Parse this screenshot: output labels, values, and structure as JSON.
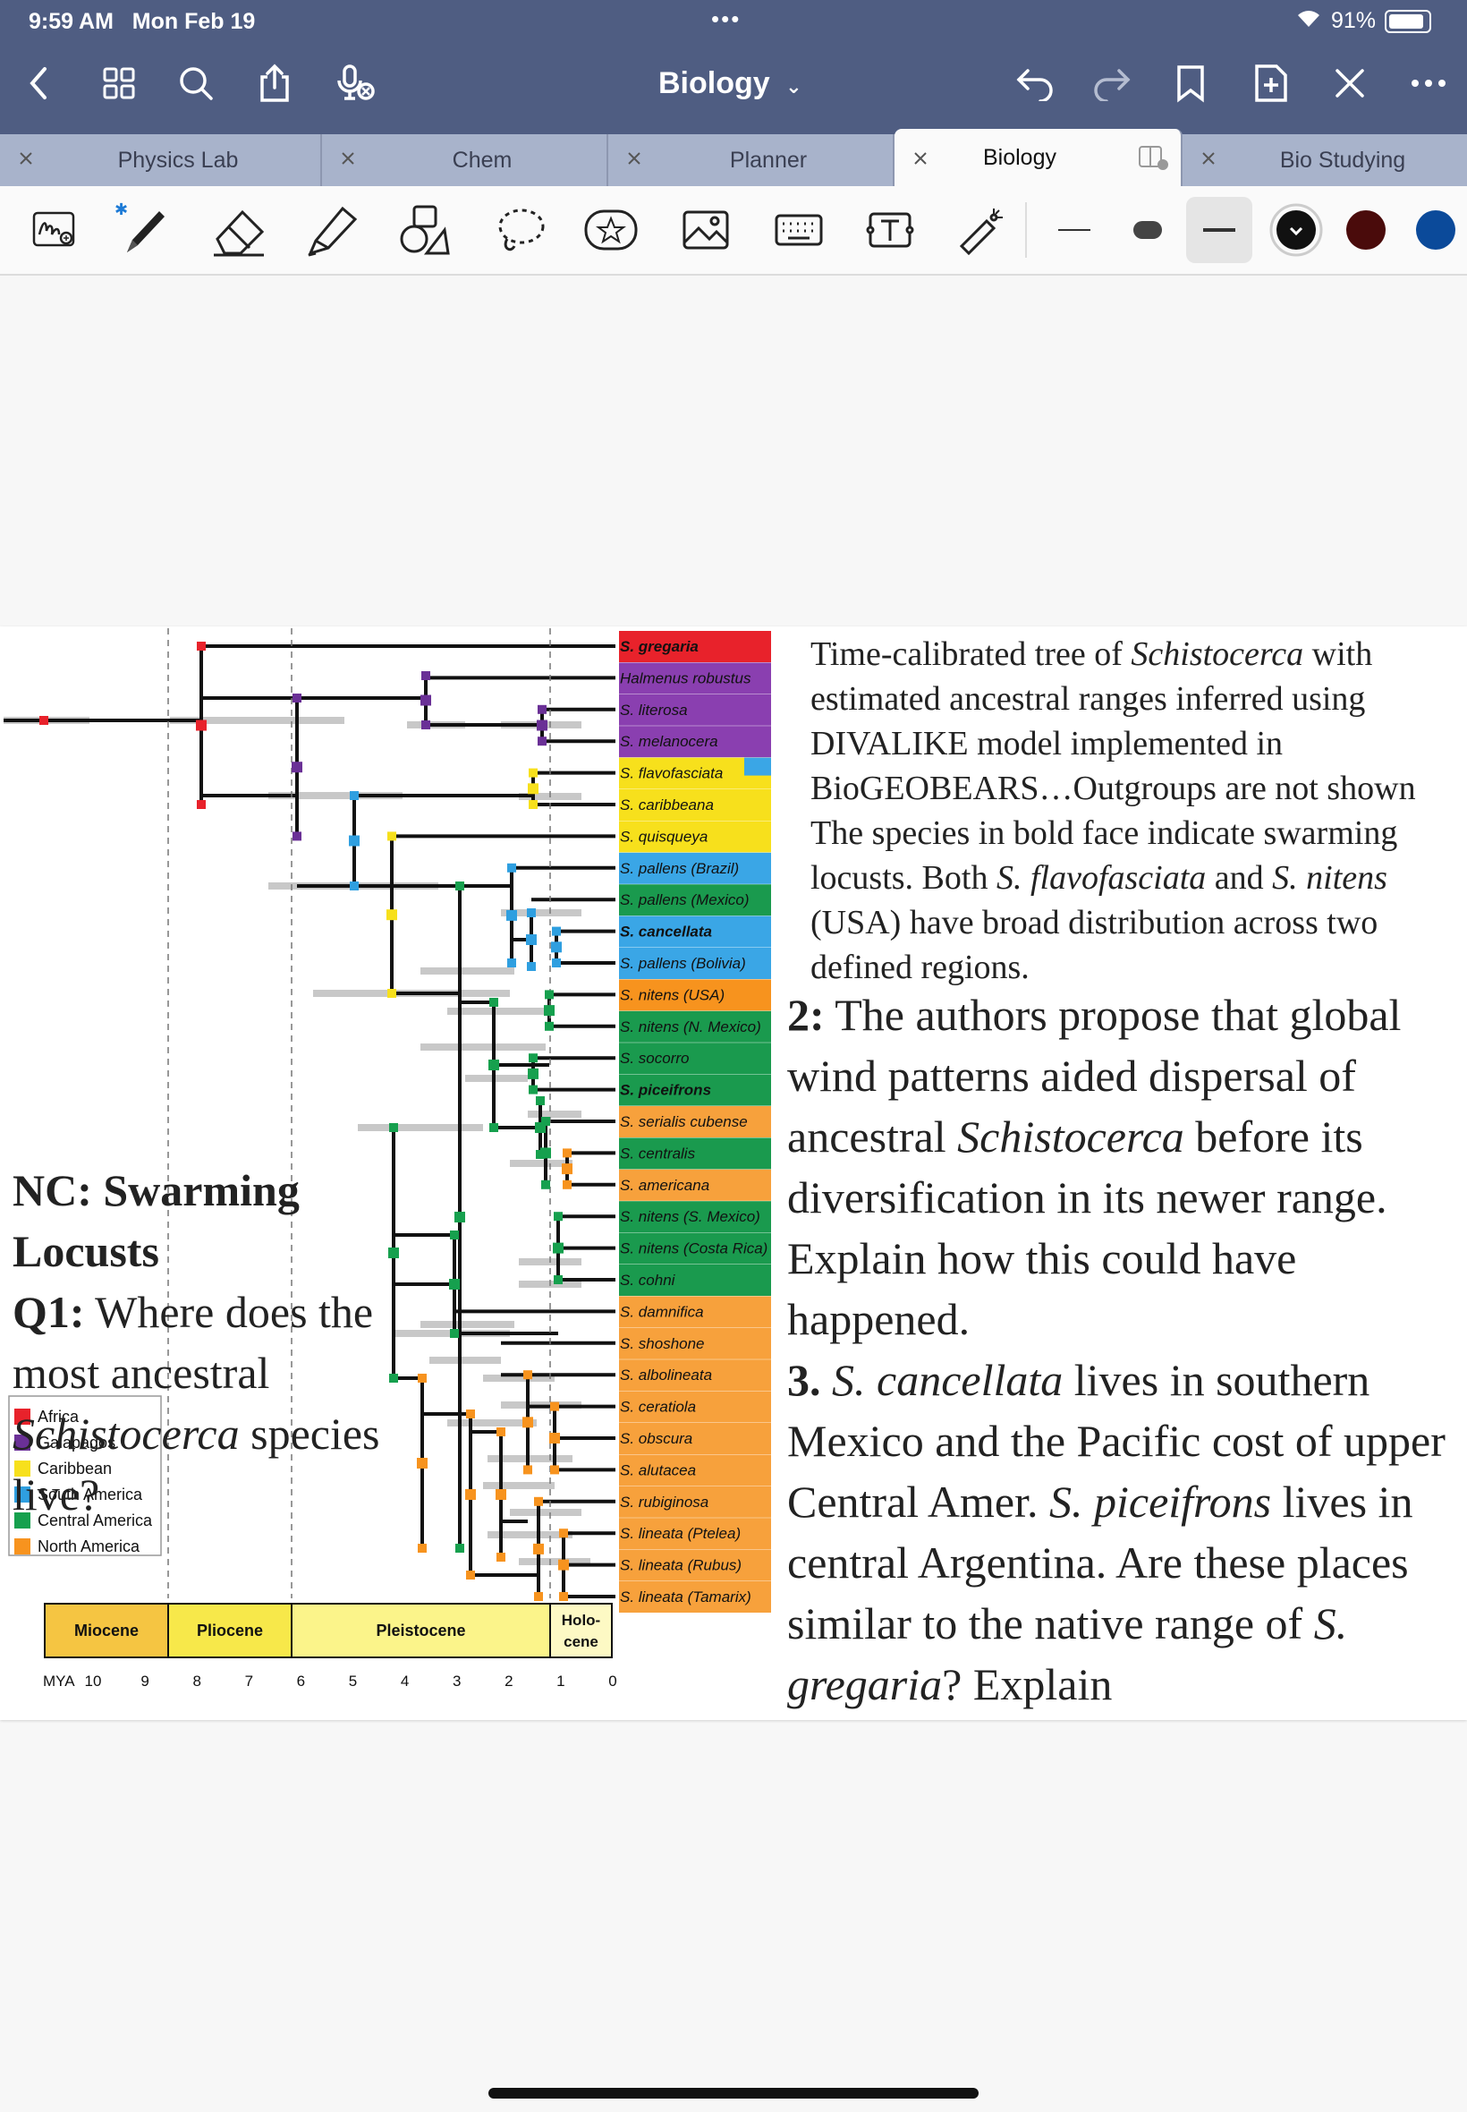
{
  "status": {
    "time": "9:59 AM",
    "date": "Mon Feb 19",
    "battery": "91%"
  },
  "titlebar": {
    "title": "Biology"
  },
  "tabs": [
    {
      "label": "Physics Lab"
    },
    {
      "label": "Chem"
    },
    {
      "label": "Planner"
    },
    {
      "label": "Biology"
    },
    {
      "label": "Bio Studying"
    }
  ],
  "toolbar": {
    "tools": [
      "handwriting-to-text-icon",
      "pen-icon",
      "eraser-icon",
      "highlighter-icon",
      "shapes-icon",
      "lasso-icon",
      "sticker-icon",
      "image-icon",
      "keyboard-icon",
      "text-box-icon",
      "laser-pointer-icon"
    ],
    "colors": [
      "#111111",
      "#4a0b0b",
      "#0b4a9a"
    ]
  },
  "figure": {
    "legend": [
      {
        "label": "Africa",
        "color": "#e8222b"
      },
      {
        "label": "Galapagos",
        "color": "#6a3096"
      },
      {
        "label": "Caribbean",
        "color": "#f7e01c"
      },
      {
        "label": "South America",
        "color": "#2f9fe0"
      },
      {
        "label": "Central America",
        "color": "#16a04e"
      },
      {
        "label": "North America",
        "color": "#f7931e"
      }
    ],
    "species": [
      {
        "name": "S. gregaria",
        "bold": true,
        "color": "#e8222b"
      },
      {
        "name": "Halmenus robustus",
        "bold": false,
        "color": "#8a3fb0"
      },
      {
        "name": "S. literosa",
        "bold": false,
        "color": "#8a3fb0"
      },
      {
        "name": "S. melanocera",
        "bold": false,
        "color": "#8a3fb0"
      },
      {
        "name": "S. flavofasciata",
        "bold": false,
        "color": "#f7e01c"
      },
      {
        "name": "S. caribbeana",
        "bold": false,
        "color": "#f7e01c"
      },
      {
        "name": "S. quisqueya",
        "bold": false,
        "color": "#f7e01c"
      },
      {
        "name": "S. pallens (Brazil)",
        "bold": false,
        "color": "#3aa6e6"
      },
      {
        "name": "S. pallens (Mexico)",
        "bold": false,
        "color": "#1a9a4e"
      },
      {
        "name": "S. cancellata",
        "bold": true,
        "color": "#3aa6e6"
      },
      {
        "name": "S. pallens (Bolivia)",
        "bold": false,
        "color": "#3aa6e6"
      },
      {
        "name": "S. nitens (USA)",
        "bold": false,
        "color": "#f7931e"
      },
      {
        "name": "S. nitens (N. Mexico)",
        "bold": false,
        "color": "#1a9a4e"
      },
      {
        "name": "S. socorro",
        "bold": false,
        "color": "#1a9a4e"
      },
      {
        "name": "S. piceifrons",
        "bold": true,
        "color": "#1a9a4e"
      },
      {
        "name": "S. serialis cubense",
        "bold": false,
        "color": "#f7a13c"
      },
      {
        "name": "S. centralis",
        "bold": false,
        "color": "#1a9a4e"
      },
      {
        "name": "S. americana",
        "bold": false,
        "color": "#f7a13c"
      },
      {
        "name": "S. nitens (S. Mexico)",
        "bold": false,
        "color": "#1a9a4e"
      },
      {
        "name": "S. nitens (Costa Rica)",
        "bold": false,
        "color": "#1a9a4e"
      },
      {
        "name": "S. cohni",
        "bold": false,
        "color": "#1a9a4e"
      },
      {
        "name": "S. damnifica",
        "bold": false,
        "color": "#f7a13c"
      },
      {
        "name": "S. shoshone",
        "bold": false,
        "color": "#f7a13c"
      },
      {
        "name": "S. albolineata",
        "bold": false,
        "color": "#f7a13c"
      },
      {
        "name": "S. ceratiola",
        "bold": false,
        "color": "#f7a13c"
      },
      {
        "name": "S. obscura",
        "bold": false,
        "color": "#f7a13c"
      },
      {
        "name": "S. alutacea",
        "bold": false,
        "color": "#f7a13c"
      },
      {
        "name": "S. rubiginosa",
        "bold": false,
        "color": "#f7a13c"
      },
      {
        "name": "S. lineata (Ptelea)",
        "bold": false,
        "color": "#f7a13c"
      },
      {
        "name": "S. lineata (Rubus)",
        "bold": false,
        "color": "#f7a13c"
      },
      {
        "name": "S. lineata (Tamarix)",
        "bold": false,
        "color": "#f7a13c"
      }
    ],
    "epochs": [
      {
        "label": "Miocene",
        "color": "#f5c542"
      },
      {
        "label": "Pliocene",
        "color": "#f7e84a"
      },
      {
        "label": "Pleistocene",
        "color": "#fbf48a"
      },
      {
        "label": "Holo-",
        "label2": "cene",
        "color": "#fdf9c4"
      }
    ],
    "axis": {
      "unit": "MYA",
      "ticks": [
        "10",
        "9",
        "8",
        "7",
        "6",
        "5",
        "4",
        "3",
        "2",
        "1",
        "0"
      ]
    }
  },
  "caption": {
    "parts": [
      {
        "t": "Time-calibrated tree of ",
        "i": false
      },
      {
        "t": "Schistocerca",
        "i": true
      },
      {
        "t": " with estimated ancestral ranges inferred using DIVALIKE model implemented in BioGEOBEARS…Outgroups are not shown The species in bold face indicate swarming locusts. Both ",
        "i": false
      },
      {
        "t": "S. flavofasciata",
        "i": true
      },
      {
        "t": " and ",
        "i": false
      },
      {
        "t": "S. nitens",
        "i": true
      },
      {
        "t": " (USA) have broad distribution across two defined regions.",
        "i": false
      }
    ]
  },
  "notes": {
    "nc_title": "NC: Swarming Locusts",
    "q1_label": "Q1:",
    "q1_text_a": " Where does the most ancestral ",
    "q1_italic": "Schistocerca",
    "q1_text_b": " species live?",
    "q2_label": "2:",
    "q2_text_a": " The authors propose that global wind patterns aided dispersal of ancestral ",
    "q2_italic": "Schistocerca",
    "q2_text_b": " before its diversification in its newer range.  Explain how this could have happened.",
    "q3_label": "3.",
    "q3_italic_a": " S. cancellata",
    "q3_text_a": " lives in southern Mexico and the Pacific cost of upper Central Amer.  ",
    "q3_italic_b": "S. piceifrons",
    "q3_text_b": " lives in central Argentina. Are these places similar to the native range of ",
    "q3_italic_c": "S. gregaria",
    "q3_text_c": "? Explain"
  }
}
